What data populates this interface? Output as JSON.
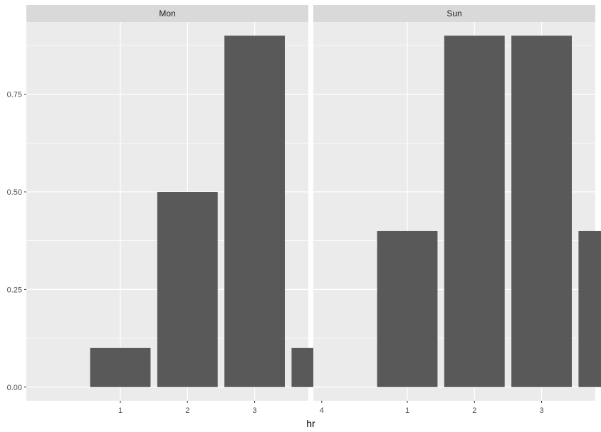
{
  "chart_data": {
    "type": "bar",
    "xlabel": "hr",
    "ylabel": "",
    "title": "",
    "categories": [
      "1",
      "2",
      "3",
      "4"
    ],
    "ylim": [
      -0.035,
      0.935
    ],
    "y_ticks": [
      0.0,
      0.25,
      0.5,
      0.75
    ],
    "y_tick_labels": [
      "0.00",
      "0.25",
      "0.50",
      "0.75"
    ],
    "bar_color": "#595959",
    "panel_background": "#ebebeb",
    "grid_color": "#ffffff",
    "strip_background": "#d9d9d9",
    "facets": [
      {
        "name": "Mon",
        "values": [
          0.1,
          0.5,
          0.9,
          0.1
        ]
      },
      {
        "name": "Sun",
        "values": [
          0.4,
          0.9,
          0.9,
          0.4
        ]
      }
    ]
  }
}
